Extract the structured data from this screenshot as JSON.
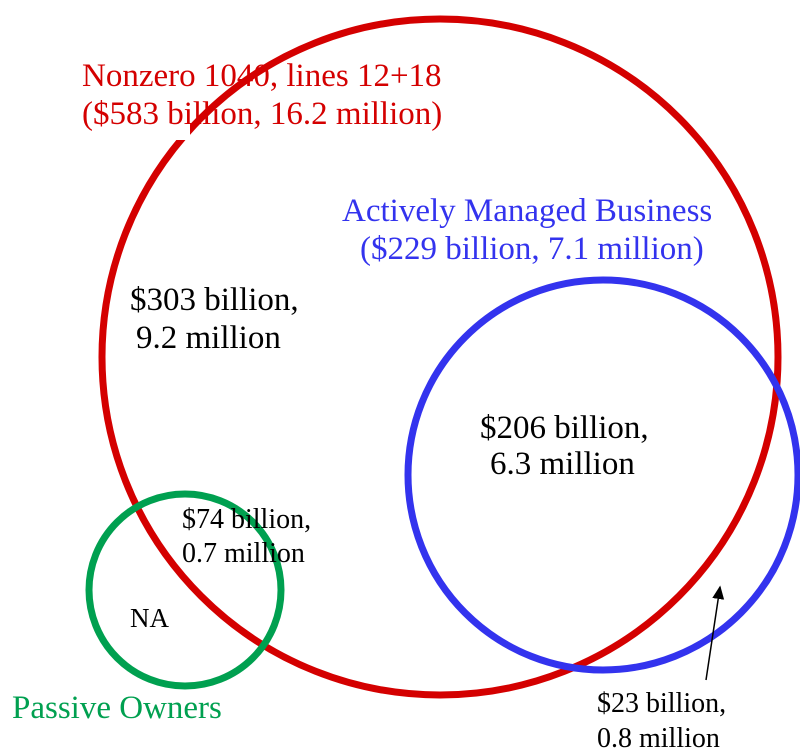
{
  "sets": [
    {
      "name": "Nonzero 1040, lines 12+18",
      "summary": "($583 billion, 16.2 million)"
    },
    {
      "name": "Actively Managed Business",
      "summary": "($229 billion, 7.1 million)"
    },
    {
      "name": "Passive Owners"
    }
  ],
  "regions": [
    {
      "lines": [
        "$303 billion,",
        "9.2 million"
      ]
    },
    {
      "lines": [
        "$206 billion,",
        "6.3 million"
      ]
    },
    {
      "lines": [
        "$74 billion,",
        "0.7 million"
      ]
    },
    {
      "lines": [
        "NA"
      ]
    },
    {
      "lines": [
        "$23 billion,",
        "0.8 million"
      ]
    }
  ]
}
